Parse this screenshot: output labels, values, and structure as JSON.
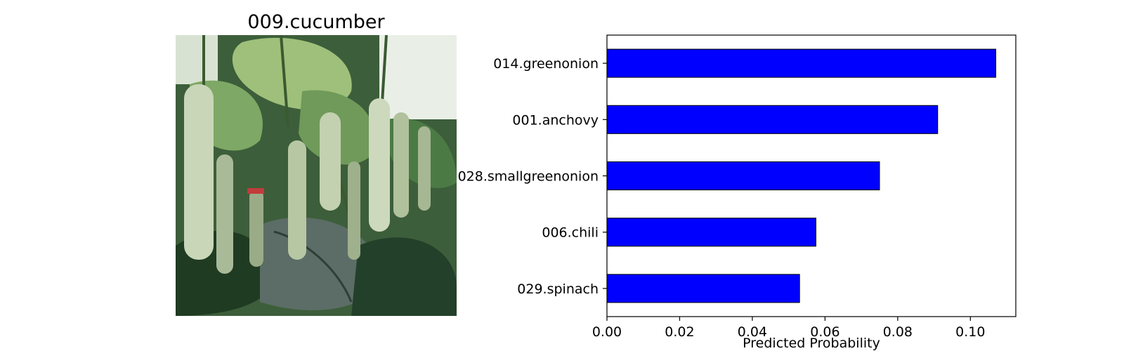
{
  "image_panel": {
    "title": "009.cucumber",
    "photo_subject": "cucumbers hanging from vines in a greenhouse",
    "colors": {
      "leaf_dark": "#1f3b22",
      "leaf_mid": "#4c7a45",
      "leaf_light": "#9fc07a",
      "cucumber": "#c9d6b8",
      "sky": "#e9efe6"
    }
  },
  "chart_data": {
    "type": "bar",
    "orientation": "horizontal",
    "categories": [
      "014.greenonion",
      "001.anchovy",
      "028.smallgreenonion",
      "006.chili",
      "029.spinach"
    ],
    "values": [
      0.107,
      0.091,
      0.075,
      0.0575,
      0.053
    ],
    "xlabel": "Predicted Probability",
    "ylabel": "",
    "xlim": [
      0,
      0.1125
    ],
    "xticks": [
      0.0,
      0.02,
      0.04,
      0.06,
      0.08,
      0.1
    ],
    "xtick_labels": [
      "0.00",
      "0.02",
      "0.04",
      "0.06",
      "0.08",
      "0.10"
    ],
    "grid": false,
    "bar_color": "#0000ff",
    "bar_edge_color": "#000000"
  }
}
